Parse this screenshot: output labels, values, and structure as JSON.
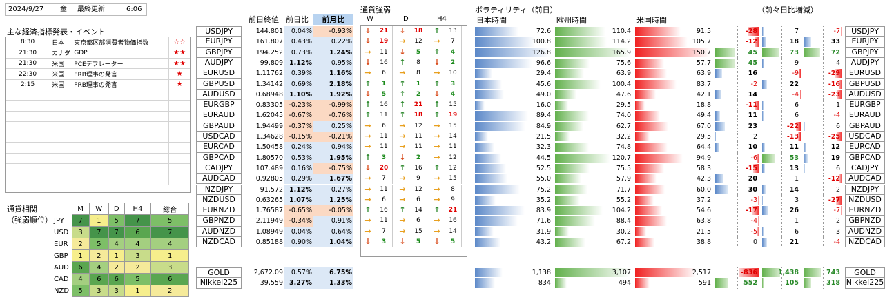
{
  "header": {
    "date": "2024/9/27",
    "day": "金",
    "update_label": "最終更新",
    "time": "6:06"
  },
  "events": {
    "title": "主な経済指標発表・イベント",
    "rows": [
      {
        "time": "8:30",
        "country": "日本",
        "name": "東京都区部消費者物価指数",
        "stars": "☆☆"
      },
      {
        "time": "21:30",
        "country": "カナダ",
        "name": "GDP",
        "stars": "★★"
      },
      {
        "time": "21:30",
        "country": "米国",
        "name": "PCEデフレーター",
        "stars": "★★"
      },
      {
        "time": "22:30",
        "country": "米国",
        "name": "FRB理事の発言",
        "stars": "★"
      },
      {
        "time": "2:15",
        "country": "米国",
        "name": "FRB理事の発言",
        "stars": "★"
      }
    ]
  },
  "rank": {
    "title1": "通貨相関",
    "title2": "（強弱順位）",
    "cols": [
      "M",
      "W",
      "D",
      "H4",
      "総合"
    ],
    "rows": [
      {
        "cur": "JPY",
        "v": [
          "7",
          "1",
          "5",
          "7",
          "5"
        ]
      },
      {
        "cur": "USD",
        "v": [
          "3",
          "7",
          "7",
          "6",
          "7"
        ]
      },
      {
        "cur": "EUR",
        "v": [
          "2",
          "5",
          "4",
          "4",
          "4"
        ]
      },
      {
        "cur": "GBP",
        "v": [
          "1",
          "2",
          "1",
          "3",
          "1"
        ]
      },
      {
        "cur": "AUD",
        "v": [
          "6",
          "4",
          "2",
          "2",
          "3"
        ]
      },
      {
        "cur": "CAD",
        "v": [
          "4",
          "6",
          "6",
          "5",
          "6"
        ]
      },
      {
        "cur": "NZD",
        "v": [
          "5",
          "3",
          "3",
          "1",
          "2"
        ]
      }
    ]
  },
  "cols": {
    "close": "前日終値",
    "day": "前日比",
    "month": "前月比",
    "strength": "通貨強弱",
    "w": "W",
    "d": "D",
    "h4": "H4",
    "vol": "ボラティリティ（前日）",
    "jp": "日本時間",
    "eu": "欧州時間",
    "us": "米国時間",
    "chg": "（前々日比増減）"
  },
  "pairs": [
    {
      "p": "USDJPY",
      "c": "144.801",
      "d": "0.04%",
      "m": "-0.93%",
      "w1": "dn",
      "w2": "21",
      "d1": "dn",
      "d2": "18",
      "h1": "up",
      "h2": "13",
      "jp": "72.6",
      "eu": "110.4",
      "us": "91.5",
      "a": "-28",
      "b": "7",
      "e": "-7"
    },
    {
      "p": "EURJPY",
      "c": "161.807",
      "d": "0.43%",
      "m": "0.22%",
      "w1": "dn",
      "w2": "19",
      "d1": "ri",
      "d2": "12",
      "h1": "ri",
      "h2": "7",
      "jp": "100.8",
      "eu": "114.2",
      "us": "105.7",
      "a": "-12",
      "b": "18",
      "e": "33"
    },
    {
      "p": "GBPJPY",
      "c": "194.252",
      "d": "0.73%",
      "m": "1.24%",
      "w1": "ri",
      "w2": "11",
      "d1": "dn",
      "d2": "5",
      "h1": "up",
      "h2": "4",
      "jp": "126.8",
      "eu": "165.9",
      "us": "150.7",
      "a": "45",
      "b": "73",
      "e": "72"
    },
    {
      "p": "AUDJPY",
      "c": "99.809",
      "d": "1.12%",
      "m": "0.95%",
      "w1": "dn",
      "w2": "16",
      "d1": "up",
      "d2": "8",
      "h1": "dn",
      "h2": "2",
      "jp": "96.6",
      "eu": "75.6",
      "us": "57.7",
      "a": "45",
      "b": "9",
      "e": "4"
    },
    {
      "p": "EURUSD",
      "c": "1.11762",
      "d": "0.39%",
      "m": "1.16%",
      "w1": "ri",
      "w2": "6",
      "d1": "ri",
      "d2": "8",
      "h1": "ri",
      "h2": "10",
      "jp": "29.4",
      "eu": "63.9",
      "us": "63.9",
      "a": "16",
      "b": "-9",
      "e": "-29"
    },
    {
      "p": "GBPUSD",
      "c": "1.34142",
      "d": "0.69%",
      "m": "2.18%",
      "w1": "up",
      "w2": "1",
      "d1": "up",
      "d2": "1",
      "h1": "up",
      "h2": "3",
      "jp": "45.6",
      "eu": "100.4",
      "us": "83.7",
      "a": "-2",
      "b": "22",
      "e": "-16"
    },
    {
      "p": "AUDUSD",
      "c": "0.68948",
      "d": "1.10%",
      "m": "1.92%",
      "w1": "dn",
      "w2": "5",
      "d1": "up",
      "d2": "2",
      "h1": "dn",
      "h2": "4",
      "jp": "49.0",
      "eu": "47.6",
      "us": "42.1",
      "a": "14",
      "b": "-4",
      "e": "-23"
    },
    {
      "p": "EURGBP",
      "c": "0.83305",
      "d": "-0.23%",
      "m": "-0.99%",
      "w1": "up",
      "w2": "16",
      "d1": "up",
      "d2": "21",
      "h1": "up",
      "h2": "15",
      "jp": "16.0",
      "eu": "29.5",
      "us": "18.8",
      "a": "-11",
      "b": "6",
      "e": "1"
    },
    {
      "p": "EURAUD",
      "c": "1.62045",
      "d": "-0.67%",
      "m": "-0.76%",
      "w1": "up",
      "w2": "11",
      "d1": "up",
      "d2": "18",
      "h1": "up",
      "h2": "19",
      "jp": "89.4",
      "eu": "74.0",
      "us": "49.4",
      "a": "11",
      "b": "6",
      "e": "-4"
    },
    {
      "p": "GBPAUD",
      "c": "1.94499",
      "d": "-0.37%",
      "m": "0.25%",
      "w1": "ri",
      "w2": "6",
      "d1": "ri",
      "d2": "12",
      "h1": "ri",
      "h2": "15",
      "jp": "84.9",
      "eu": "62.7",
      "us": "67.0",
      "a": "23",
      "b": "-22",
      "e": "6"
    },
    {
      "p": "USDCAD",
      "c": "1.34628",
      "d": "-0.15%",
      "m": "-0.21%",
      "w1": "ri",
      "w2": "11",
      "d1": "ri",
      "d2": "11",
      "h1": "ri",
      "h2": "14",
      "jp": "21.5",
      "eu": "32.2",
      "us": "29.5",
      "a": "2",
      "b": "-13",
      "e": "-25"
    },
    {
      "p": "EURCAD",
      "c": "1.50458",
      "d": "0.24%",
      "m": "0.94%",
      "w1": "ri",
      "w2": "11",
      "d1": "ri",
      "d2": "11",
      "h1": "ri",
      "h2": "11",
      "jp": "32.3",
      "eu": "74.8",
      "us": "64.4",
      "a": "10",
      "b": "11",
      "e": "12"
    },
    {
      "p": "GBPCAD",
      "c": "1.80570",
      "d": "0.53%",
      "m": "1.95%",
      "w1": "up",
      "w2": "3",
      "d1": "dn",
      "d2": "2",
      "h1": "ri",
      "h2": "12",
      "jp": "44.5",
      "eu": "120.7",
      "us": "94.9",
      "a": "-6",
      "b": "53",
      "e": "19"
    },
    {
      "p": "CADJPY",
      "c": "107.489",
      "d": "0.16%",
      "m": "-0.75%",
      "w1": "dn",
      "w2": "20",
      "d1": "up",
      "d2": "16",
      "h1": "up",
      "h2": "12",
      "jp": "52.5",
      "eu": "75.5",
      "us": "58.3",
      "a": "-15",
      "b": "13",
      "e": "6"
    },
    {
      "p": "AUDCAD",
      "c": "0.92805",
      "d": "0.29%",
      "m": "1.67%",
      "w1": "ri",
      "w2": "7",
      "d1": "ri",
      "d2": "9",
      "h1": "ri",
      "h2": "15",
      "jp": "55.0",
      "eu": "57.9",
      "us": "42.3",
      "a": "20",
      "b": "1",
      "e": "-12"
    },
    {
      "p": "NZDJPY",
      "c": "91.572",
      "d": "1.12%",
      "m": "0.27%",
      "w1": "ri",
      "w2": "11",
      "d1": "ri",
      "d2": "12",
      "h1": "ri",
      "h2": "8",
      "jp": "75.2",
      "eu": "71.7",
      "us": "60.0",
      "a": "30",
      "b": "14",
      "e": "2"
    },
    {
      "p": "NZDUSD",
      "c": "0.63265",
      "d": "1.07%",
      "m": "1.25%",
      "w1": "ri",
      "w2": "6",
      "d1": "ri",
      "d2": "6",
      "h1": "ri",
      "h2": "9",
      "jp": "35.2",
      "eu": "55.2",
      "us": "37.2",
      "a": "-3",
      "b": "3",
      "e": "-27"
    },
    {
      "p": "EURNZD",
      "c": "1.76587",
      "d": "-0.65%",
      "m": "-0.05%",
      "w1": "up",
      "w2": "16",
      "d1": "up",
      "d2": "14",
      "h1": "up",
      "h2": "21",
      "jp": "83.9",
      "eu": "104.2",
      "us": "54.6",
      "a": "-17",
      "b": "26",
      "e": "-7"
    },
    {
      "p": "GBPNZD",
      "c": "2.11949",
      "d": "-0.34%",
      "m": "0.91%",
      "w1": "ri",
      "w2": "11",
      "d1": "ri",
      "d2": "6",
      "h1": "ri",
      "h2": "16",
      "jp": "71.6",
      "eu": "88.4",
      "us": "63.8",
      "a": "-4",
      "b": "1",
      "e": "2"
    },
    {
      "p": "AUDNZD",
      "c": "1.08949",
      "d": "0.04%",
      "m": "0.64%",
      "w1": "ri",
      "w2": "7",
      "d1": "ri",
      "d2": "15",
      "h1": "ri",
      "h2": "14",
      "jp": "31.9",
      "eu": "30.2",
      "us": "21.5",
      "a": "-5",
      "b": "6",
      "e": "3"
    },
    {
      "p": "NZDCAD",
      "c": "0.85188",
      "d": "0.90%",
      "m": "1.04%",
      "w1": "dn",
      "w2": "3",
      "d1": "dn",
      "d2": "5",
      "h1": "dn",
      "h2": "5",
      "jp": "43.2",
      "eu": "67.2",
      "us": "38.8",
      "a": "0",
      "b": "21",
      "e": "-4"
    }
  ],
  "extra": [
    {
      "p": "GOLD",
      "c": "2,672.09",
      "d": "0.57%",
      "m": "6.75%",
      "jp": "1,138",
      "eu": "3,107",
      "us": "2,517",
      "a": "-836",
      "b": "1,438",
      "e": "743"
    },
    {
      "p": "Nikkei225",
      "c": "39,559",
      "d": "3.27%",
      "m": "1.33%",
      "jp": "834",
      "eu": "494",
      "us": "591",
      "a": "552",
      "b": "105",
      "e": "318"
    }
  ]
}
